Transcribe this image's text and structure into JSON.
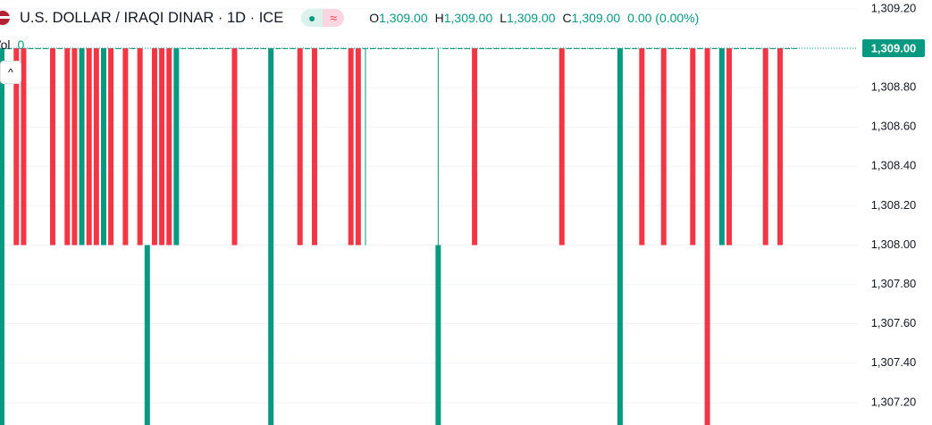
{
  "chart_data": {
    "type": "candlestick",
    "title": "U.S. DOLLAR / IRAQI DINAR · 1D · ICE",
    "legend": [
      {
        "key": "O",
        "value": "1,309.00"
      },
      {
        "key": "H",
        "value": "1,309.00"
      },
      {
        "key": "L",
        "value": "1,309.00"
      },
      {
        "key": "C",
        "value": "1,309.00"
      }
    ],
    "change": "0.00 (0.00%)",
    "volume_label": "Vol",
    "volume_value": "0",
    "last_price": {
      "value": 1309,
      "label": "1,309.00"
    },
    "up_color": "#089981",
    "down_color": "#f23645",
    "ylim": [
      1307.086,
      1309.245
    ],
    "yticks": [
      {
        "value": 1307.2,
        "label": "1,307.20"
      },
      {
        "value": 1307.4,
        "label": "1,307.40"
      },
      {
        "value": 1307.6,
        "label": "1,307.60"
      },
      {
        "value": 1307.8,
        "label": "1,307.80"
      },
      {
        "value": 1308,
        "label": "1,308.00"
      },
      {
        "value": 1308.2,
        "label": "1,308.20"
      },
      {
        "value": 1308.4,
        "label": "1,308.40"
      },
      {
        "value": 1308.6,
        "label": "1,308.60"
      },
      {
        "value": 1308.8,
        "label": "1,308.80"
      },
      {
        "value": 1309.2,
        "label": "1,309.20"
      }
    ],
    "grid": true,
    "open": [
      1307,
      1309,
      1309,
      1309,
      1309,
      1309,
      1309,
      1309,
      1309,
      1309,
      1309,
      1308,
      1309,
      1309,
      1308,
      1309,
      1309,
      1309,
      1309,
      1309,
      1307,
      1309,
      1309,
      1309,
      1308,
      1309,
      1309,
      1309,
      1309,
      1309,
      1309,
      1309,
      1309,
      1309,
      1309,
      1309,
      1309,
      1307,
      1309,
      1309,
      1309,
      1309,
      1309,
      1309,
      1309,
      1309,
      1309,
      1309,
      1309,
      1309,
      1309,
      1309,
      1309,
      1309,
      1309,
      1309,
      1309,
      1309,
      1309,
      1309,
      1307,
      1309,
      1309,
      1309,
      1309,
      1309,
      1309,
      1309,
      1309,
      1309,
      1309,
      1309,
      1309,
      1309,
      1309,
      1309,
      1309,
      1309,
      1309,
      1309,
      1309,
      1309,
      1309,
      1309,
      1309,
      1307,
      1309,
      1309,
      1309,
      1309,
      1309,
      1309,
      1309,
      1309,
      1309,
      1309,
      1309,
      1309,
      1309,
      1308,
      1309,
      1309,
      1309,
      1309,
      1309,
      1309,
      1309,
      1309,
      1309,
      1309
    ],
    "high": [
      1309,
      1309,
      1309,
      1309,
      1309,
      1309,
      1309,
      1309,
      1309,
      1309,
      1309,
      1309,
      1309,
      1309,
      1309,
      1309,
      1309,
      1309,
      1309,
      1309,
      1308,
      1309,
      1309,
      1309,
      1309,
      1309,
      1309,
      1309,
      1309,
      1309,
      1309,
      1309,
      1309,
      1309,
      1309,
      1309,
      1309,
      1309,
      1309,
      1309,
      1309,
      1309,
      1309,
      1309,
      1309,
      1309,
      1309,
      1309,
      1309,
      1309,
      1309,
      1309,
      1309,
      1309,
      1309,
      1309,
      1309,
      1309,
      1309,
      1309,
      1309,
      1309,
      1309,
      1309,
      1309,
      1309,
      1309,
      1309,
      1309,
      1309,
      1309,
      1309,
      1309,
      1309,
      1309,
      1309,
      1309,
      1309,
      1309,
      1309,
      1309,
      1309,
      1309,
      1309,
      1309,
      1309,
      1309,
      1309,
      1309,
      1309,
      1309,
      1309,
      1309,
      1309,
      1309,
      1309,
      1309,
      1309,
      1309,
      1309,
      1309,
      1309,
      1309,
      1309,
      1309,
      1309,
      1309,
      1309,
      1309,
      1309
    ],
    "low": [
      1307,
      1309,
      1308,
      1308,
      1309,
      1309,
      1309,
      1308,
      1309,
      1308,
      1308,
      1308,
      1308,
      1308,
      1308,
      1308,
      1309,
      1308,
      1309,
      1308,
      1307,
      1308,
      1308,
      1308,
      1308,
      1309,
      1309,
      1309,
      1309,
      1309,
      1309,
      1309,
      1308,
      1309,
      1309,
      1309,
      1309,
      1307,
      1309,
      1309,
      1309,
      1308,
      1309,
      1308,
      1309,
      1309,
      1309,
      1309,
      1308,
      1308,
      1308,
      1309,
      1309,
      1309,
      1309,
      1309,
      1309,
      1309,
      1309,
      1309,
      1307,
      1309,
      1309,
      1309,
      1309,
      1308,
      1309,
      1309,
      1309,
      1309,
      1309,
      1309,
      1309,
      1309,
      1309,
      1309,
      1309,
      1308,
      1309,
      1309,
      1309,
      1309,
      1309,
      1309,
      1309,
      1307,
      1309,
      1309,
      1308,
      1309,
      1309,
      1308,
      1309,
      1309,
      1309,
      1308,
      1309,
      1307,
      1309,
      1308,
      1308,
      1309,
      1309,
      1309,
      1309,
      1308,
      1309,
      1308,
      1309,
      1309
    ],
    "close": [
      1309,
      1309,
      1308,
      1308,
      1309,
      1309,
      1309,
      1308,
      1309,
      1308,
      1308,
      1309,
      1308,
      1308,
      1309,
      1308,
      1309,
      1308,
      1309,
      1308,
      1308,
      1308,
      1308,
      1308,
      1309,
      1309,
      1309,
      1309,
      1309,
      1309,
      1309,
      1309,
      1308,
      1309,
      1309,
      1309,
      1309,
      1309,
      1309,
      1309,
      1309,
      1308,
      1309,
      1308,
      1309,
      1309,
      1309,
      1309,
      1308,
      1308,
      1309,
      1309,
      1309,
      1309,
      1309,
      1309,
      1309,
      1309,
      1309,
      1309,
      1308,
      1309,
      1309,
      1309,
      1309,
      1308,
      1309,
      1309,
      1309,
      1309,
      1309,
      1309,
      1309,
      1309,
      1309,
      1309,
      1309,
      1308,
      1309,
      1309,
      1309,
      1309,
      1309,
      1309,
      1309,
      1309,
      1309,
      1309,
      1308,
      1309,
      1309,
      1308,
      1309,
      1309,
      1309,
      1308,
      1309,
      1307,
      1309,
      1309,
      1308,
      1309,
      1309,
      1309,
      1309,
      1308,
      1309,
      1308,
      1309,
      1309
    ]
  }
}
